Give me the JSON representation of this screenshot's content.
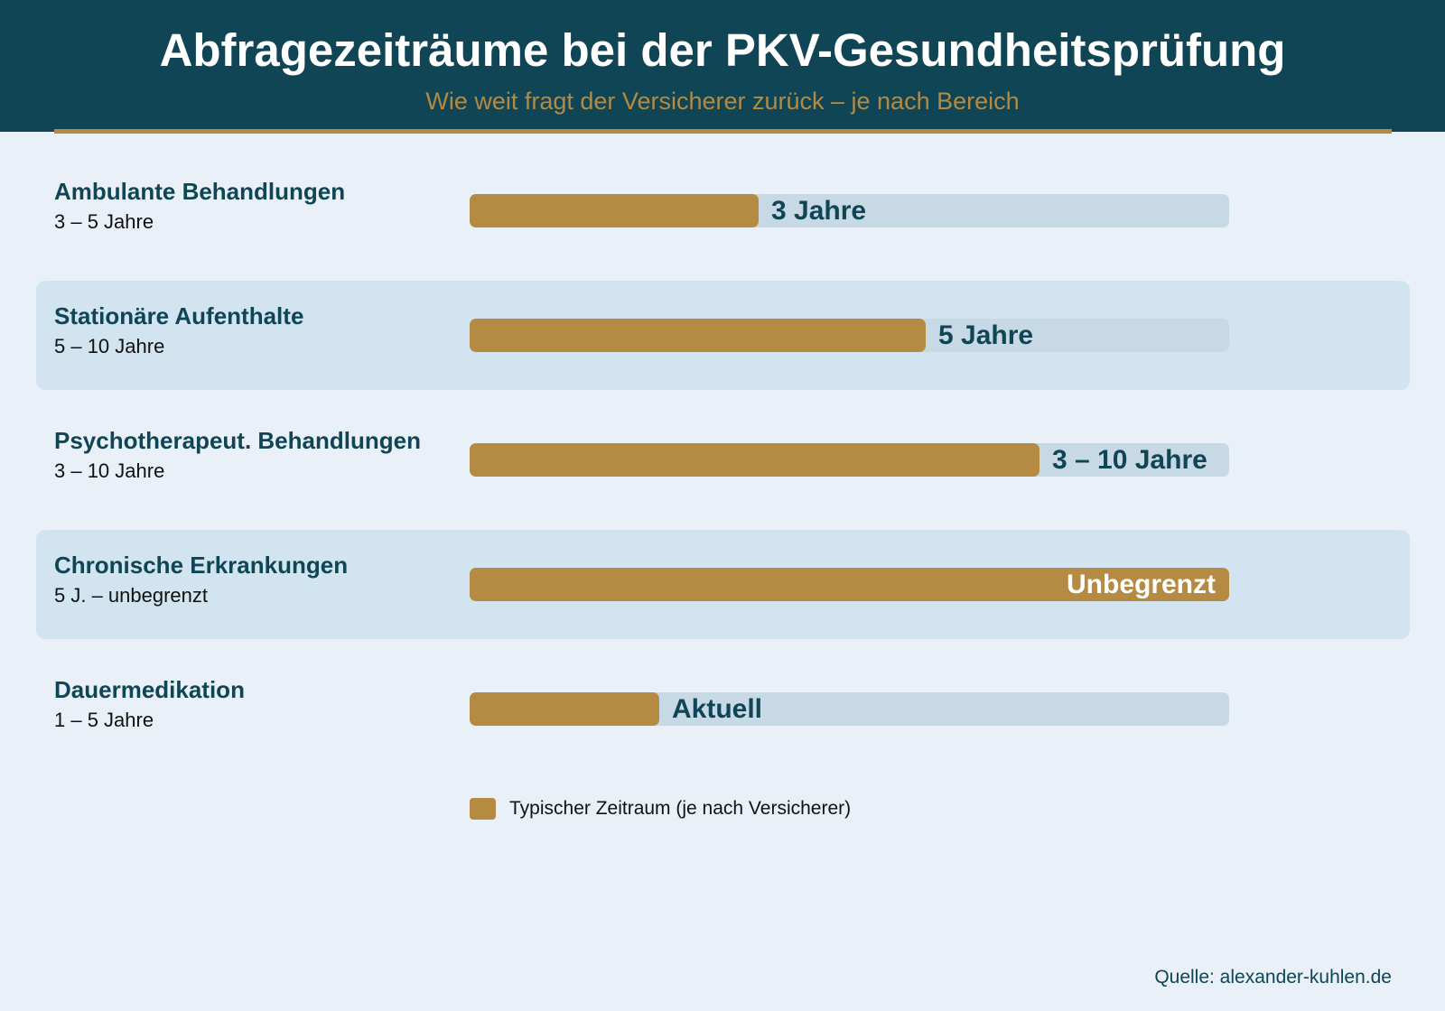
{
  "header": {
    "title": "Abfragezeiträume bei der PKV-Gesundheitsprüfung",
    "subtitle": "Wie weit fragt der Versicherer zurück – je nach Bereich"
  },
  "colors": {
    "header_bg": "#0f4555",
    "accent": "#b58a42",
    "track": "#c8d9e6",
    "row_highlight": "#d1e4ef",
    "page_bg": "#eaf0f8"
  },
  "chart_data": {
    "type": "bar",
    "orientation": "horizontal",
    "categories": [
      "Ambulante Behandlungen",
      "Stationäre Aufenthalte",
      "Psychotherapeut. Behandlungen",
      "Chronische Erkrankungen",
      "Dauermedikation"
    ],
    "ranges": [
      "3 – 5 Jahre",
      "5 – 10 Jahre",
      "3 – 10 Jahre",
      "5 J. – unbegrenzt",
      "1 – 5 Jahre"
    ],
    "bar_labels": [
      "3 Jahre",
      "5 Jahre",
      "3 – 10 Jahre",
      "Unbegrenzt",
      "Aktuell"
    ],
    "values": [
      0.38,
      0.6,
      0.75,
      1.0,
      0.25
    ],
    "value_unit": "fraction of full bar",
    "highlighted_rows": [
      false,
      true,
      false,
      true,
      false
    ],
    "legend": [
      {
        "label": "Typischer Zeitraum (je nach Versicherer)",
        "color": "#b58a42"
      }
    ],
    "legend_position": "bottom",
    "grid": false
  },
  "footer": {
    "source": "Quelle: alexander-kuhlen.de"
  }
}
